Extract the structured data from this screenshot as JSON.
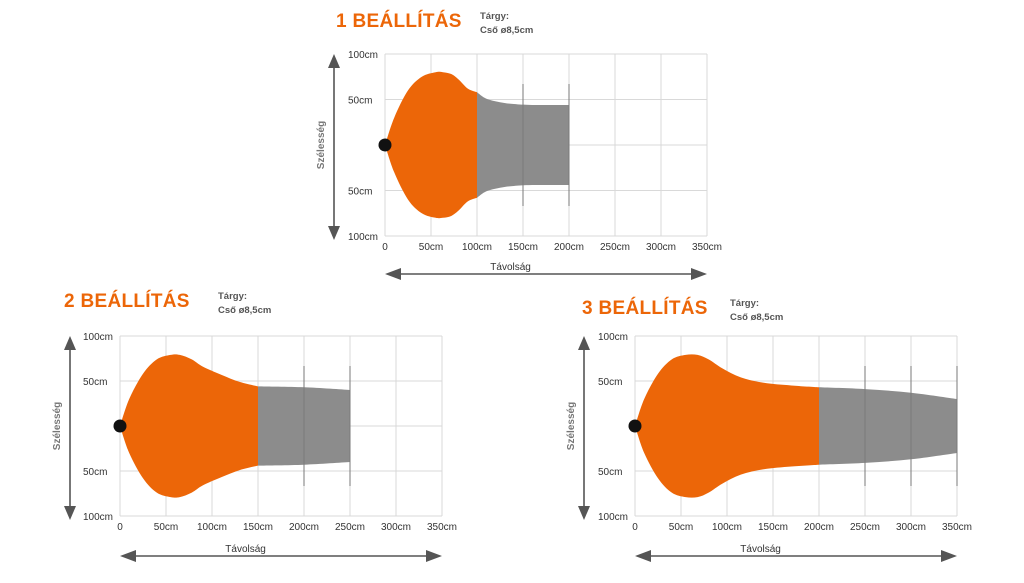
{
  "colors": {
    "accent": "#ec6608",
    "gray": "#8c8c8c",
    "dot": "#111111",
    "grid": "#d9d9d9",
    "arrow": "#555555"
  },
  "chart_data": [
    {
      "type": "area",
      "title": "1 BEÁLLÍTÁS",
      "subject_label": "Tárgy:",
      "subject_value": "Cső ø8,5cm",
      "xlabel": "Távolság",
      "ylabel": "Szélesség",
      "xticks": [
        "0",
        "50cm",
        "100cm",
        "150cm",
        "200cm",
        "250cm",
        "300cm",
        "350cm"
      ],
      "yticks": [
        "100cm",
        "50cm",
        "50cm",
        "100cm"
      ],
      "xlim": [
        0,
        350
      ],
      "ylim": [
        -100,
        100
      ],
      "grid": true,
      "series": [
        {
          "color": "#ec6608",
          "x": [
            0,
            10,
            25,
            40,
            55,
            63,
            72,
            80,
            90,
            100
          ],
          "y": [
            0,
            30,
            60,
            75,
            80,
            80,
            78,
            72,
            62,
            58
          ]
        },
        {
          "color": "#8c8c8c",
          "x": [
            100,
            110,
            125,
            140,
            160,
            200
          ],
          "y": [
            58,
            51,
            47,
            45,
            44,
            44
          ]
        }
      ]
    },
    {
      "type": "area",
      "title": "2 BEÁLLÍTÁS",
      "subject_label": "Tárgy:",
      "subject_value": "Cső ø8,5cm",
      "xlabel": "Távolság",
      "ylabel": "Szélesség",
      "xticks": [
        "0",
        "50cm",
        "100cm",
        "150cm",
        "200cm",
        "250cm",
        "300cm",
        "350cm"
      ],
      "yticks": [
        "100cm",
        "50cm",
        "50cm",
        "100cm"
      ],
      "xlim": [
        0,
        350
      ],
      "ylim": [
        -100,
        100
      ],
      "grid": true,
      "series": [
        {
          "color": "#ec6608",
          "x": [
            0,
            10,
            25,
            40,
            55,
            65,
            78,
            90,
            110,
            130,
            150
          ],
          "y": [
            0,
            30,
            58,
            74,
            79,
            79,
            74,
            66,
            57,
            49,
            44
          ]
        },
        {
          "color": "#8c8c8c",
          "x": [
            150,
            200,
            250
          ],
          "y": [
            44,
            43,
            40
          ]
        }
      ]
    },
    {
      "type": "area",
      "title": "3 BEÁLLÍTÁS",
      "subject_label": "Tárgy:",
      "subject_value": "Cső ø8,5cm",
      "xlabel": "Távolság",
      "ylabel": "Szélesség",
      "xticks": [
        "0",
        "50cm",
        "100cm",
        "150cm",
        "200cm",
        "250cm",
        "300cm",
        "350cm"
      ],
      "yticks": [
        "100cm",
        "50cm",
        "50cm",
        "100cm"
      ],
      "xlim": [
        0,
        350
      ],
      "ylim": [
        -100,
        100
      ],
      "grid": true,
      "series": [
        {
          "color": "#ec6608",
          "x": [
            0,
            10,
            25,
            40,
            55,
            68,
            80,
            95,
            115,
            140,
            170,
            200
          ],
          "y": [
            0,
            30,
            58,
            74,
            79,
            79,
            74,
            64,
            54,
            48,
            45,
            43
          ]
        },
        {
          "color": "#8c8c8c",
          "x": [
            200,
            250,
            300,
            350
          ],
          "y": [
            43,
            41,
            37,
            30
          ]
        }
      ]
    }
  ]
}
